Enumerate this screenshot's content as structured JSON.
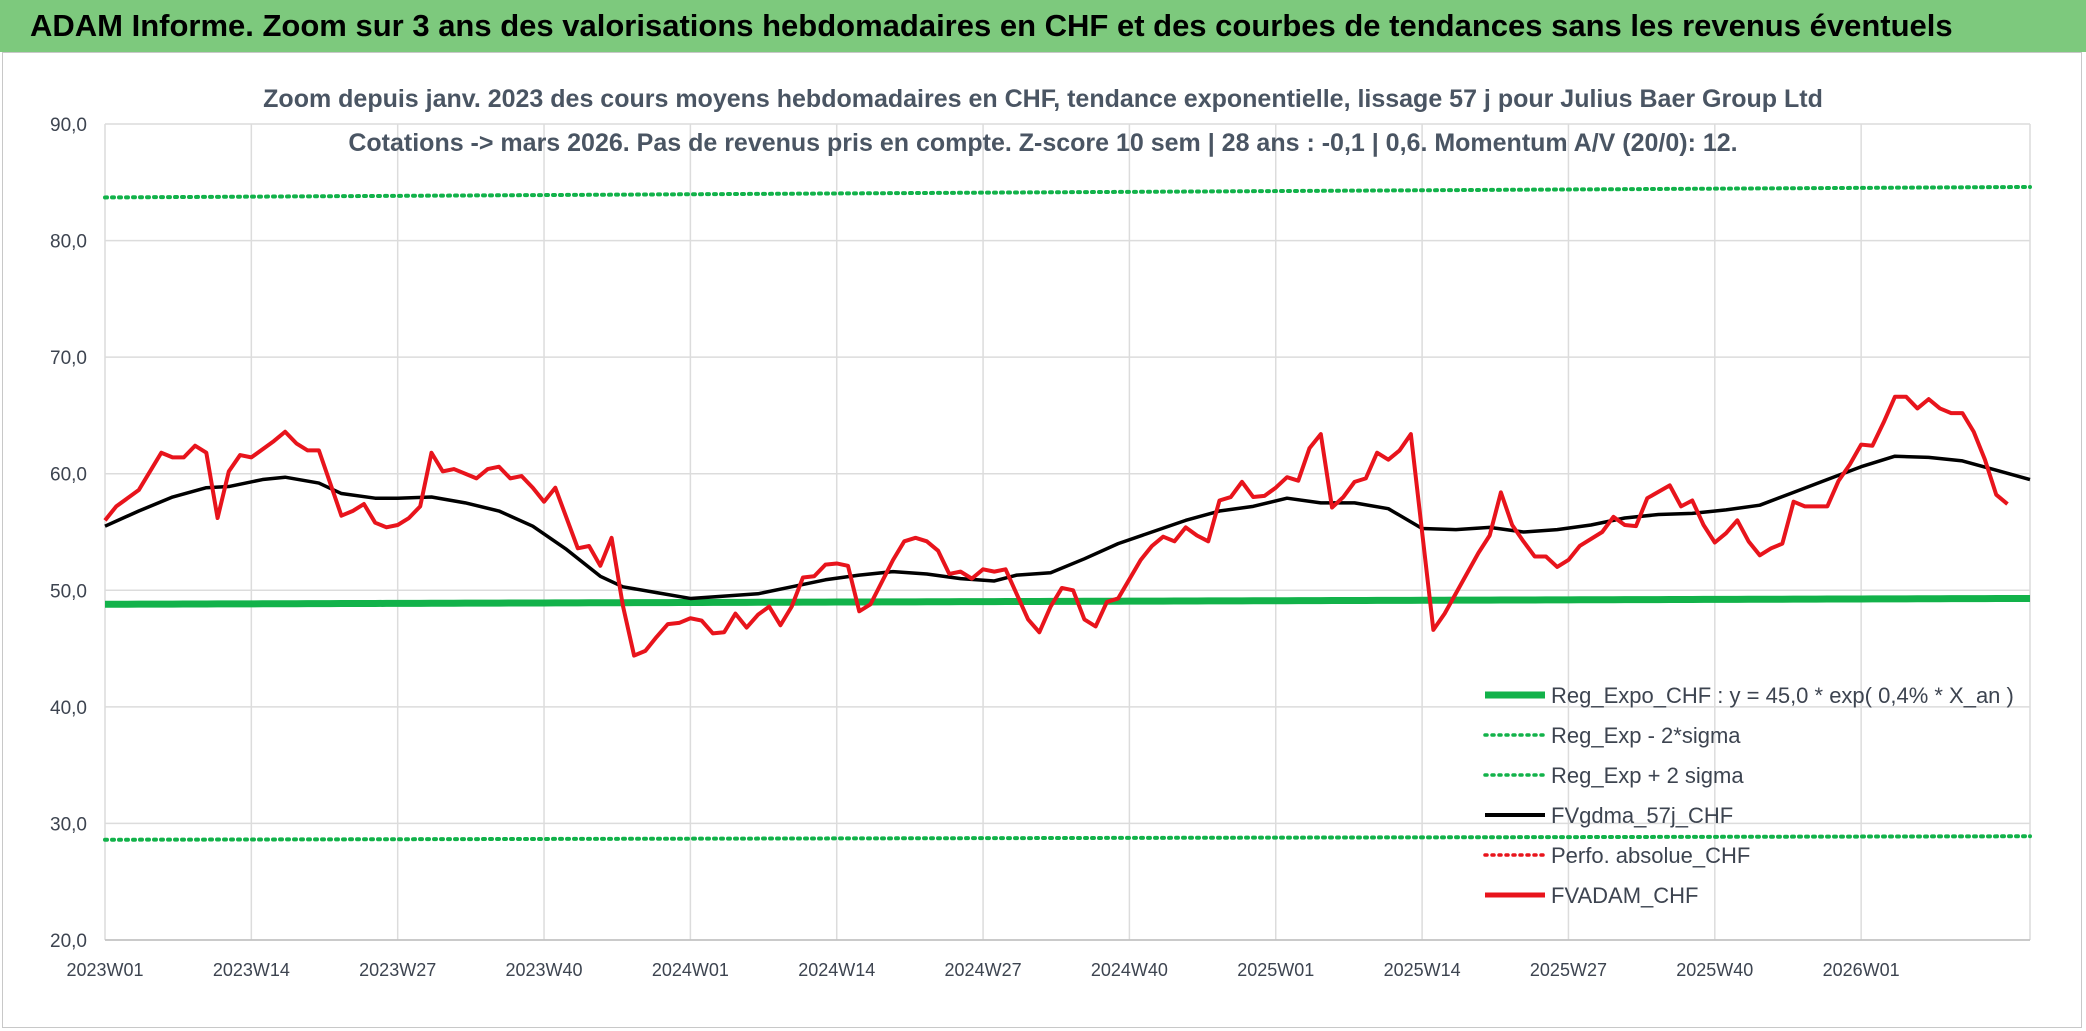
{
  "banner": {
    "title": "ADAM Informe. Zoom sur 3 ans des valorisations hebdomadaires en CHF et des courbes de tendances sans les revenus éventuels"
  },
  "colors": {
    "banner_bg": "#7dc97d",
    "reg_expo": "#12b24a",
    "sigma": "#12b24a",
    "fvgdma": "#000000",
    "perfo": "#e8141c",
    "fvadam": "#e8141c",
    "grid": "#dcdcdc",
    "text": "#3d4450"
  },
  "chart_data": {
    "type": "line",
    "title_line1": "Zoom depuis janv. 2023 des cours moyens hebdomadaires en CHF, tendance exponentielle, lissage 57 j pour Julius Baer Group Ltd",
    "title_line2": "Cotations -> mars 2026. Pas de revenus pris en compte. Z-score 10 sem | 28 ans : -0,1 | 0,6. Momentum A/V (20/0): 12.",
    "ylim": [
      20,
      90
    ],
    "y_ticks": [
      "20,0",
      "30,0",
      "40,0",
      "50,0",
      "60,0",
      "70,0",
      "80,0",
      "90,0"
    ],
    "x_tick_labels": [
      "2023W01",
      "2023W14",
      "2023W27",
      "2023W40",
      "2024W01",
      "2024W14",
      "2024W27",
      "2024W40",
      "2025W01",
      "2025W14",
      "2025W27",
      "2025W40",
      "2026W01"
    ],
    "x_tick_positions": [
      0,
      13,
      26,
      39,
      52,
      65,
      78,
      91,
      104,
      117,
      130,
      143,
      156
    ],
    "x_range": [
      0,
      171
    ],
    "grid": true,
    "legend_position": "bottom-right",
    "legend": [
      {
        "label": "Reg_Expo_CHF : y = 45,0 * exp( 0,4% *  X_an )",
        "color": "#12b24a",
        "style": "solid-thick"
      },
      {
        "label": "Reg_Exp - 2*sigma",
        "color": "#12b24a",
        "style": "dotted"
      },
      {
        "label": "Reg_Exp + 2 sigma",
        "color": "#12b24a",
        "style": "dotted"
      },
      {
        "label": "FVgdma_57j_CHF",
        "color": "#000000",
        "style": "solid"
      },
      {
        "label": "Perfo. absolue_CHF",
        "color": "#e8141c",
        "style": "dotted"
      },
      {
        "label": "FVADAM_CHF",
        "color": "#e8141c",
        "style": "solid-thick"
      }
    ],
    "series": [
      {
        "name": "Reg_Expo_CHF : y = 45,0 * exp( 0,4% *  X_an )",
        "key": "reg",
        "start": 48.8,
        "end": 49.3
      },
      {
        "name": "Reg_Exp - 2*sigma",
        "key": "low",
        "start": 28.6,
        "end": 28.9
      },
      {
        "name": "Reg_Exp + 2 sigma",
        "key": "high",
        "start": 83.7,
        "end": 84.6
      },
      {
        "name": "FVgdma_57j_CHF",
        "key": "gdma",
        "points": [
          [
            0,
            55.5
          ],
          [
            3,
            56.8
          ],
          [
            6,
            58
          ],
          [
            9,
            58.8
          ],
          [
            11,
            58.9
          ],
          [
            14,
            59.5
          ],
          [
            16,
            59.7
          ],
          [
            19,
            59.2
          ],
          [
            21,
            58.3
          ],
          [
            24,
            57.9
          ],
          [
            26,
            57.9
          ],
          [
            29,
            58
          ],
          [
            32,
            57.5
          ],
          [
            35,
            56.8
          ],
          [
            38,
            55.5
          ],
          [
            41,
            53.5
          ],
          [
            44,
            51.2
          ],
          [
            46,
            50.3
          ],
          [
            49,
            49.8
          ],
          [
            52,
            49.3
          ],
          [
            55,
            49.5
          ],
          [
            58,
            49.7
          ],
          [
            61,
            50.3
          ],
          [
            64,
            50.9
          ],
          [
            67,
            51.3
          ],
          [
            70,
            51.6
          ],
          [
            73,
            51.4
          ],
          [
            76,
            51
          ],
          [
            79,
            50.8
          ],
          [
            81,
            51.3
          ],
          [
            84,
            51.5
          ],
          [
            87,
            52.7
          ],
          [
            90,
            54
          ],
          [
            93,
            55
          ],
          [
            96,
            56
          ],
          [
            99,
            56.8
          ],
          [
            102,
            57.2
          ],
          [
            105,
            57.9
          ],
          [
            108,
            57.5
          ],
          [
            111,
            57.5
          ],
          [
            114,
            57
          ],
          [
            117,
            55.3
          ],
          [
            120,
            55.2
          ],
          [
            123,
            55.4
          ],
          [
            126,
            55
          ],
          [
            129,
            55.2
          ],
          [
            132,
            55.6
          ],
          [
            135,
            56.2
          ],
          [
            138,
            56.5
          ],
          [
            141,
            56.6
          ],
          [
            144,
            56.9
          ],
          [
            147,
            57.3
          ],
          [
            150,
            58.4
          ],
          [
            153,
            59.5
          ],
          [
            156,
            60.6
          ],
          [
            159,
            61.5
          ],
          [
            162,
            61.4
          ],
          [
            165,
            61.1
          ],
          [
            168,
            60.3
          ],
          [
            171,
            59.5
          ]
        ]
      },
      {
        "name": "FVADAM_CHF",
        "key": "adam",
        "points": [
          [
            0,
            56
          ],
          [
            1,
            57.2
          ],
          [
            3,
            58.6
          ],
          [
            5,
            61.8
          ],
          [
            6,
            61.4
          ],
          [
            7,
            61.4
          ],
          [
            8,
            62.4
          ],
          [
            9,
            61.8
          ],
          [
            10,
            56.2
          ],
          [
            11,
            60.2
          ],
          [
            12,
            61.6
          ],
          [
            13,
            61.4
          ],
          [
            15,
            62.8
          ],
          [
            16,
            63.6
          ],
          [
            17,
            62.6
          ],
          [
            18,
            62
          ],
          [
            19,
            62
          ],
          [
            21,
            56.4
          ],
          [
            22,
            56.8
          ],
          [
            23,
            57.4
          ],
          [
            24,
            55.8
          ],
          [
            25,
            55.4
          ],
          [
            26,
            55.6
          ],
          [
            27,
            56.2
          ],
          [
            28,
            57.2
          ],
          [
            29,
            61.8
          ],
          [
            30,
            60.2
          ],
          [
            31,
            60.4
          ],
          [
            33,
            59.6
          ],
          [
            34,
            60.4
          ],
          [
            35,
            60.6
          ],
          [
            36,
            59.6
          ],
          [
            37,
            59.8
          ],
          [
            38,
            58.8
          ],
          [
            39,
            57.6
          ],
          [
            40,
            58.8
          ],
          [
            42,
            53.6
          ],
          [
            43,
            53.8
          ],
          [
            44,
            52.1
          ],
          [
            45,
            54.5
          ],
          [
            46,
            48.7
          ],
          [
            47,
            44.4
          ],
          [
            48,
            44.8
          ],
          [
            49,
            46
          ],
          [
            50,
            47.1
          ],
          [
            51,
            47.2
          ],
          [
            52,
            47.6
          ],
          [
            53,
            47.4
          ],
          [
            54,
            46.3
          ],
          [
            55,
            46.4
          ],
          [
            56,
            48
          ],
          [
            57,
            46.8
          ],
          [
            58,
            47.9
          ],
          [
            59,
            48.6
          ],
          [
            60,
            47
          ],
          [
            61,
            48.6
          ],
          [
            62,
            51.1
          ],
          [
            63,
            51.2
          ],
          [
            64,
            52.2
          ],
          [
            65,
            52.3
          ],
          [
            66,
            52.1
          ],
          [
            67,
            48.2
          ],
          [
            68,
            48.8
          ],
          [
            70,
            52.6
          ],
          [
            71,
            54.2
          ],
          [
            72,
            54.5
          ],
          [
            73,
            54.2
          ],
          [
            74,
            53.4
          ],
          [
            75,
            51.4
          ],
          [
            76,
            51.6
          ],
          [
            77,
            51
          ],
          [
            78,
            51.8
          ],
          [
            79,
            51.6
          ],
          [
            80,
            51.8
          ],
          [
            82,
            47.5
          ],
          [
            83,
            46.4
          ],
          [
            84,
            48.6
          ],
          [
            85,
            50.2
          ],
          [
            86,
            50
          ],
          [
            87,
            47.5
          ],
          [
            88,
            46.9
          ],
          [
            89,
            49
          ],
          [
            90,
            49.3
          ],
          [
            92,
            52.6
          ],
          [
            93,
            53.8
          ],
          [
            94,
            54.6
          ],
          [
            95,
            54.2
          ],
          [
            96,
            55.4
          ],
          [
            97,
            54.7
          ],
          [
            98,
            54.2
          ],
          [
            99,
            57.7
          ],
          [
            100,
            58
          ],
          [
            101,
            59.3
          ],
          [
            102,
            58
          ],
          [
            103,
            58.1
          ],
          [
            104,
            58.8
          ],
          [
            105,
            59.7
          ],
          [
            106,
            59.4
          ],
          [
            107,
            62.2
          ],
          [
            108,
            63.4
          ],
          [
            109,
            57.1
          ],
          [
            110,
            58
          ],
          [
            111,
            59.3
          ],
          [
            112,
            59.6
          ],
          [
            113,
            61.8
          ],
          [
            114,
            61.2
          ],
          [
            115,
            62
          ],
          [
            116,
            63.4
          ],
          [
            118,
            46.6
          ],
          [
            119,
            48
          ],
          [
            122,
            53.2
          ],
          [
            123,
            54.7
          ],
          [
            124,
            58.4
          ],
          [
            125,
            55.6
          ],
          [
            126,
            54.2
          ],
          [
            127,
            52.9
          ],
          [
            128,
            52.9
          ],
          [
            129,
            52
          ],
          [
            130,
            52.6
          ],
          [
            131,
            53.8
          ],
          [
            133,
            55
          ],
          [
            134,
            56.3
          ],
          [
            135,
            55.6
          ],
          [
            136,
            55.5
          ],
          [
            137,
            57.9
          ],
          [
            139,
            59
          ],
          [
            140,
            57.2
          ],
          [
            141,
            57.7
          ],
          [
            142,
            55.6
          ],
          [
            143,
            54.1
          ],
          [
            144,
            54.9
          ],
          [
            145,
            56
          ],
          [
            146,
            54.2
          ],
          [
            147,
            53
          ],
          [
            148,
            53.6
          ],
          [
            149,
            54
          ],
          [
            150,
            57.6
          ],
          [
            151,
            57.2
          ],
          [
            153,
            57.2
          ],
          [
            154,
            59.4
          ],
          [
            155,
            60.8
          ],
          [
            156,
            62.5
          ],
          [
            157,
            62.4
          ],
          [
            158,
            64.4
          ],
          [
            159,
            66.6
          ],
          [
            160,
            66.6
          ],
          [
            161,
            65.6
          ],
          [
            162,
            66.4
          ],
          [
            163,
            65.6
          ],
          [
            164,
            65.2
          ],
          [
            165,
            65.2
          ],
          [
            166,
            63.6
          ],
          [
            167,
            61.2
          ],
          [
            168,
            58.2
          ],
          [
            169,
            57.4
          ]
        ]
      }
    ]
  }
}
